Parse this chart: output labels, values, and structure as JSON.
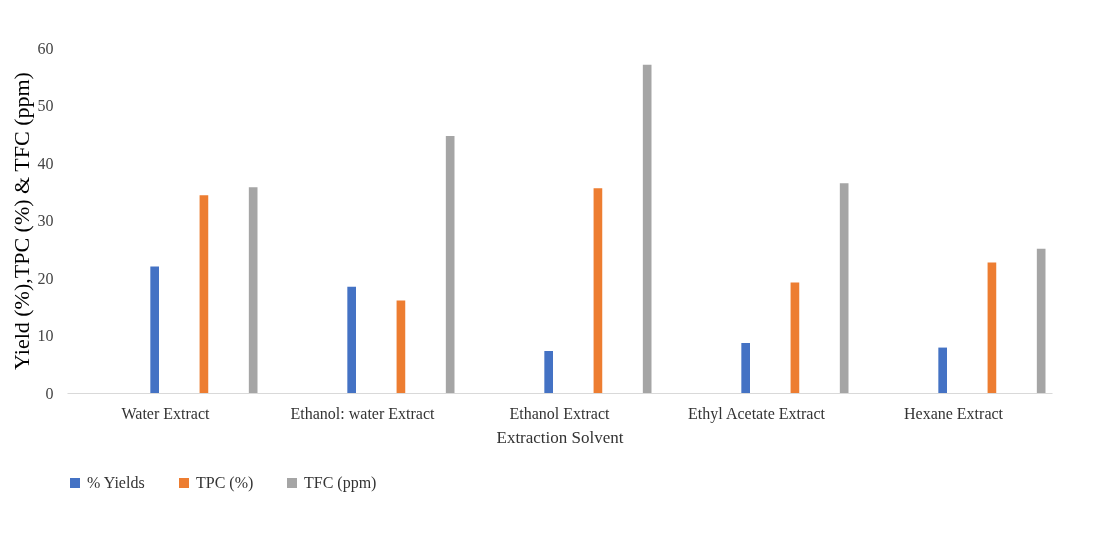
{
  "chart_data": {
    "type": "bar",
    "xlabel": "Extraction Solvent",
    "ylabel": "Yield (%),TPC (%) & TFC (ppm)",
    "categories": [
      "Water Extract",
      "Ethanol: water Extract",
      "Ethanol Extract",
      "Ethyl Acetate Extract",
      "Hexane Extract"
    ],
    "series": [
      {
        "name": "% Yields",
        "color": "#4472c4",
        "values": [
          22.0,
          18.5,
          7.3,
          8.7,
          7.9
        ]
      },
      {
        "name": "TPC (%)",
        "color": "#ed7d31",
        "values": [
          34.4,
          16.1,
          35.6,
          19.2,
          22.7
        ]
      },
      {
        "name": "TFC (ppm)",
        "color": "#a5a5a5",
        "values": [
          35.8,
          44.7,
          57.1,
          36.5,
          25.1
        ]
      }
    ],
    "ylim": [
      0,
      60
    ],
    "yticks": [
      0,
      10,
      20,
      30,
      40,
      50,
      60
    ],
    "grid": false,
    "legend": "bottom"
  }
}
